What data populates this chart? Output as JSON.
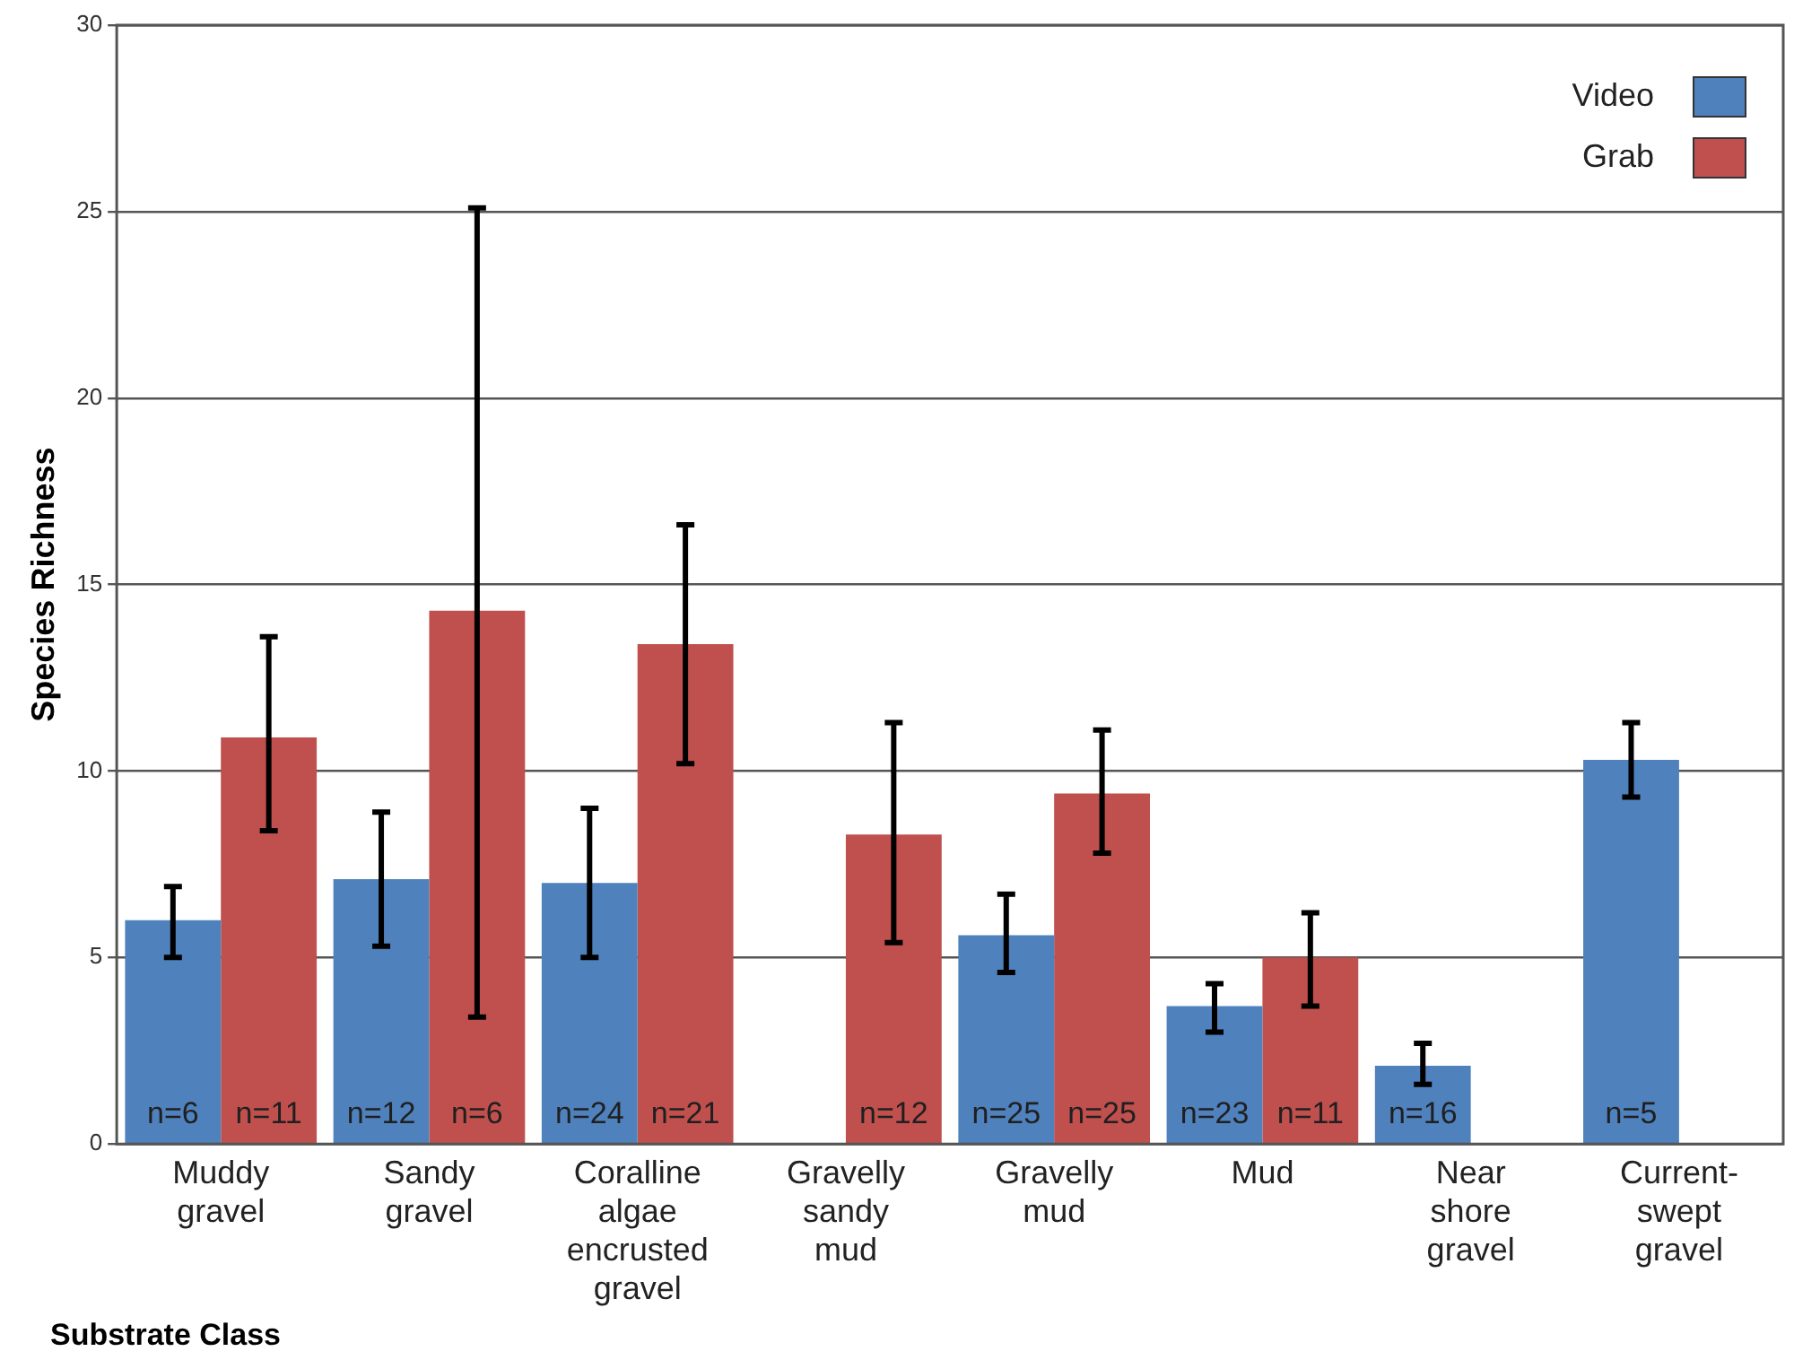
{
  "chart_data": {
    "type": "bar",
    "xlabel": "Substrate Class",
    "ylabel": "Species Richness",
    "categories": [
      "Muddy gravel",
      "Sandy gravel",
      "Coralline algae encrusted gravel",
      "Gravelly sandy mud",
      "Gravelly mud",
      "Mud",
      "Near shore gravel",
      "Current-swept gravel"
    ],
    "series": [
      {
        "name": "Video",
        "color": "#4f81bd",
        "values": [
          6.0,
          7.1,
          7.0,
          null,
          5.6,
          3.7,
          2.1,
          10.3
        ],
        "errors": [
          [
            5.0,
            6.9
          ],
          [
            5.3,
            8.9
          ],
          [
            5.0,
            9.0
          ],
          null,
          [
            4.6,
            6.7
          ],
          [
            3.0,
            4.3
          ],
          [
            1.6,
            2.7
          ],
          [
            9.3,
            11.3
          ]
        ]
      },
      {
        "name": "Grab",
        "color": "#c0504d",
        "values": [
          10.9,
          14.3,
          13.4,
          8.3,
          9.4,
          5.0,
          null,
          null
        ],
        "errors": [
          [
            8.4,
            13.6
          ],
          [
            3.4,
            25.1
          ],
          [
            10.2,
            16.6
          ],
          [
            5.4,
            11.3
          ],
          [
            7.8,
            11.1
          ],
          [
            3.7,
            6.2
          ],
          null,
          null
        ]
      }
    ],
    "annotations": [
      {
        "text": "n=6",
        "x": "Muddy gravel",
        "y": 0
      },
      {
        "text": "n=11",
        "x": "Muddy gravel",
        "y": 0
      },
      {
        "text": "n=12",
        "x": "Sandy gravel",
        "y": 0
      },
      {
        "text": "n=6",
        "x": "Sandy gravel",
        "y": 0
      },
      {
        "text": "n=24",
        "x": "Coralline algae encrusted gravel",
        "y": 0
      },
      {
        "text": "n=21",
        "x": "Coralline algae encrusted gravel",
        "y": 0
      },
      {
        "text": "n=12",
        "x": "Gravelly sandy mud",
        "y": 0
      },
      {
        "text": "n=25",
        "x": "Gravelly mud",
        "y": 0
      },
      {
        "text": "n=25",
        "x": "Gravelly mud",
        "y": 0
      },
      {
        "text": "n=23",
        "x": "Mud",
        "y": 0
      },
      {
        "text": "n=11",
        "x": "Mud",
        "y": 0
      },
      {
        "text": "n=16",
        "x": "Near shore gravel",
        "y": 0
      },
      {
        "text": "n=5",
        "x": "Current-swept gravel",
        "y": 0
      }
    ],
    "ylim": [
      0,
      30
    ],
    "yticks": [
      0,
      5,
      10,
      15,
      20,
      25,
      30
    ],
    "grid": "y",
    "legend": "top right"
  }
}
